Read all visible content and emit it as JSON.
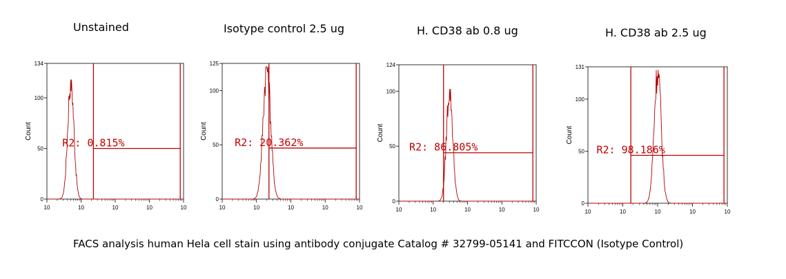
{
  "caption": "FACS analysis human Hela cell stain using antibody conjugate Catalog # 32799-05141 and FITCCON (Isotype Control)",
  "colors": {
    "histogram": "#b00000",
    "gate": "#c00000",
    "axis": "#000000"
  },
  "chart_data": [
    {
      "type": "area",
      "title": "Unstained",
      "xlabel": "",
      "ylabel": "Count",
      "xscale": "log",
      "xlim": [
        1,
        10000
      ],
      "ylim": [
        0,
        134
      ],
      "yticks": [
        0,
        50,
        100,
        134
      ],
      "x_tick_labels": [
        "10",
        "10",
        "10",
        "10",
        "10"
      ],
      "series": [
        {
          "peak_x": 5,
          "peak_y": 118,
          "spread_decades": 0.09
        }
      ],
      "gate": {
        "name": "R2",
        "range": [
          23,
          8000
        ],
        "level": 50,
        "label": "R2: 0.815%"
      }
    },
    {
      "type": "area",
      "title": "Isotype control 2.5 ug",
      "xlabel": "",
      "ylabel": "Count",
      "xscale": "log",
      "xlim": [
        1,
        10000
      ],
      "ylim": [
        0,
        125
      ],
      "yticks": [
        0,
        50,
        100,
        125
      ],
      "x_tick_labels": [
        "10",
        "10",
        "10",
        "10",
        "10"
      ],
      "series": [
        {
          "peak_x": 20,
          "peak_y": 122,
          "spread_decades": 0.11
        }
      ],
      "gate": {
        "name": "R2",
        "range": [
          23,
          8000
        ],
        "level": 47,
        "label": "R2: 20.362%"
      }
    },
    {
      "type": "area",
      "title": "H. CD38 ab 0.8 ug",
      "xlabel": "",
      "ylabel": "Count",
      "xscale": "log",
      "xlim": [
        1,
        10000
      ],
      "ylim": [
        0,
        124
      ],
      "yticks": [
        0,
        50,
        100,
        124
      ],
      "x_tick_labels": [
        "10",
        "10",
        "10",
        "10",
        "10"
      ],
      "series": [
        {
          "peak_x": 30,
          "peak_y": 102,
          "spread_decades": 0.09
        }
      ],
      "gate": {
        "name": "R2",
        "range": [
          20,
          8000
        ],
        "level": 44,
        "label": "R2: 86.805%"
      }
    },
    {
      "type": "area",
      "title": "H. CD38 ab 2.5 ug",
      "xlabel": "",
      "ylabel": "Count",
      "xscale": "log",
      "xlim": [
        1,
        10000
      ],
      "ylim": [
        0,
        131
      ],
      "yticks": [
        0,
        50,
        100,
        131
      ],
      "x_tick_labels": [
        "10",
        "10",
        "10",
        "10",
        "10"
      ],
      "series": [
        {
          "peak_x": 100,
          "peak_y": 128,
          "spread_decades": 0.1
        }
      ],
      "gate": {
        "name": "R2",
        "range": [
          17,
          8000
        ],
        "level": 46,
        "label": "R2: 98.186%"
      }
    }
  ]
}
